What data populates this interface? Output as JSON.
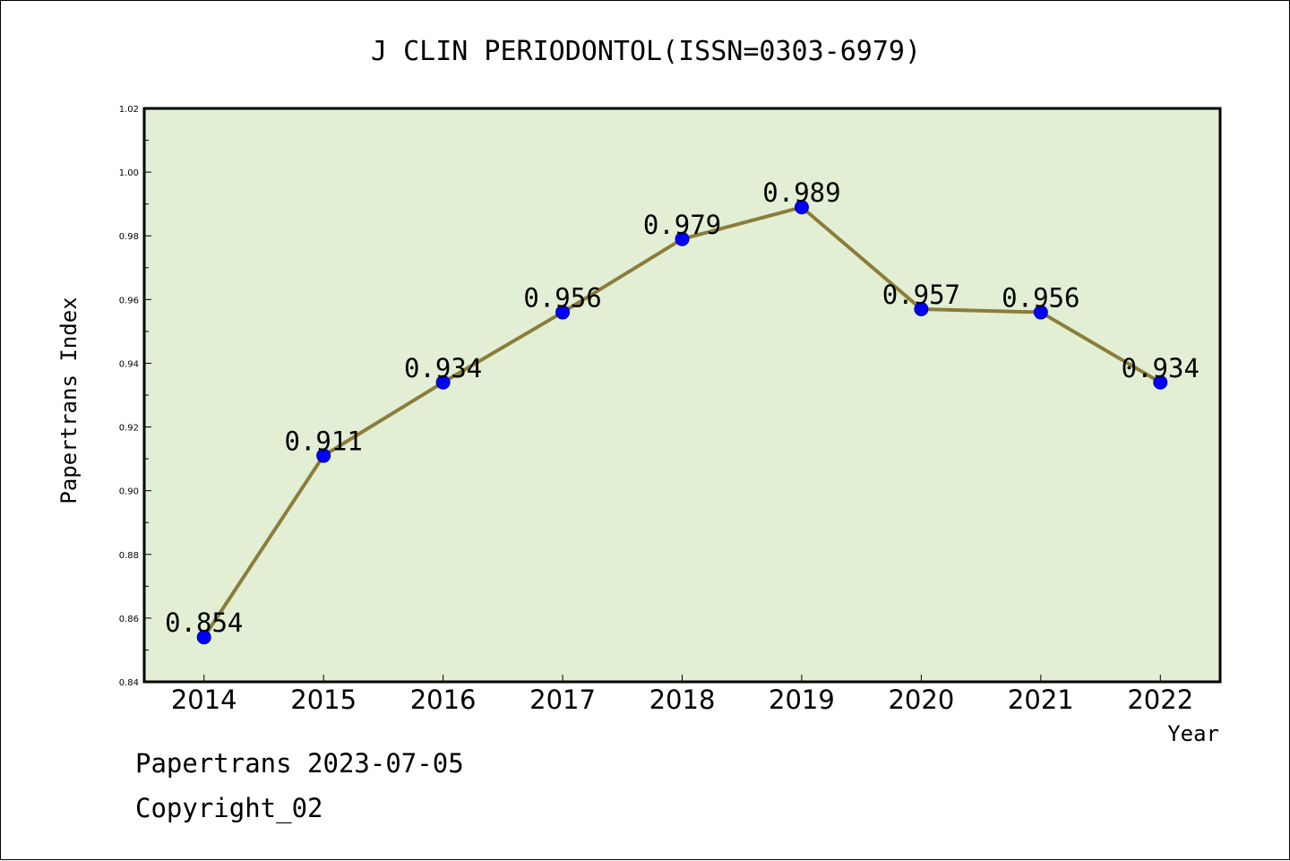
{
  "chart_data": {
    "type": "line",
    "title": "J CLIN PERIODONTOL(ISSN=0303-6979)",
    "xlabel": "Year",
    "ylabel": "Papertrans Index",
    "categories": [
      "2014",
      "2015",
      "2016",
      "2017",
      "2018",
      "2019",
      "2020",
      "2021",
      "2022"
    ],
    "series": [
      {
        "values": [
          0.854,
          0.911,
          0.934,
          0.956,
          0.979,
          0.989,
          0.957,
          0.956,
          0.934
        ]
      }
    ],
    "data_labels": [
      "0.854",
      "0.911",
      "0.934",
      "0.956",
      "0.979",
      "0.989",
      "0.957",
      "0.956",
      "0.934"
    ],
    "ylim": [
      0.84,
      1.02
    ],
    "yticks": [
      0.84,
      0.86,
      0.88,
      0.9,
      0.92,
      0.94,
      0.96,
      0.98,
      1.0,
      1.02
    ],
    "ytick_labels": [
      "0.84",
      "0.86",
      "0.88",
      "0.90",
      "0.92",
      "0.94",
      "0.96",
      "0.98",
      "1.00",
      "1.02"
    ],
    "grid": false,
    "legend": "none",
    "colors": {
      "plot_background": "#e2efd5",
      "line": "#8b7d3a",
      "marker": "#0000ff"
    }
  },
  "footer": {
    "date_line": "Papertrans 2023-07-05",
    "copyright": "Copyright_02"
  }
}
